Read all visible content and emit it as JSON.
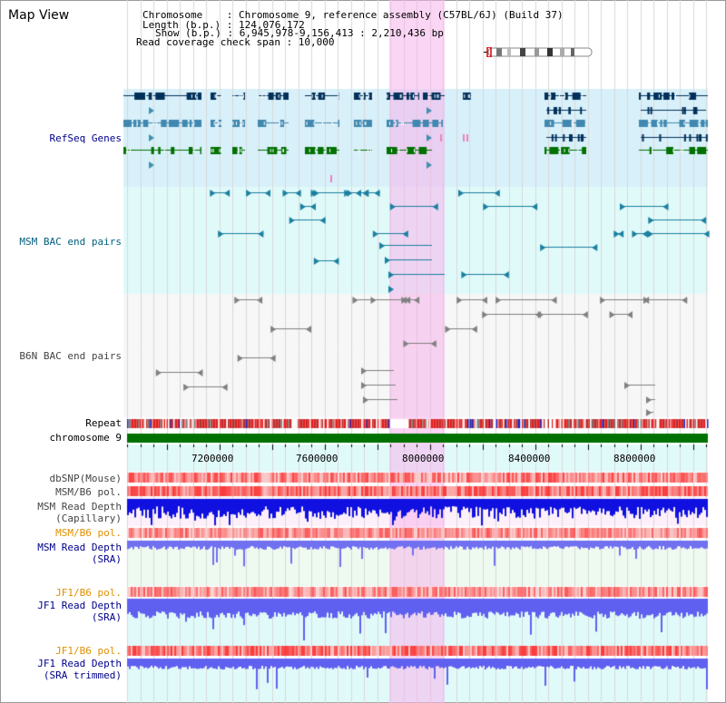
{
  "view_title": "Map View",
  "info": {
    "chromosome": "Chromosome    : Chromosome 9, reference assembly (C57BL/6J) (Build 37)",
    "length": "Length (b.p.) : 124,076,172",
    "show": "Show (b.p.) : 6,945,978-9,156,413 : 2,210,436 bp",
    "span": "Read coverage check span : 10,000"
  },
  "tracks": {
    "refseq": "RefSeq Genes",
    "msm_bac": "MSM BAC end pairs",
    "b6n_bac": "B6N BAC end pairs",
    "repeat": "Repeat",
    "chromosome": "chromosome 9",
    "dbsnp": "dbSNP(Mouse)",
    "msm_b6_pol": "MSM/B6 pol.",
    "msm_depth_cap": "MSM Read Depth\n(Capillary)",
    "msm_b6_pol2": "MSM/B6 pol.",
    "msm_depth_sra": "MSM Read Depth\n(SRA)",
    "jf1_b6_pol": "JF1/B6 pol.",
    "jf1_depth_sra": "JF1 Read Depth\n(SRA)",
    "jf1_b6_pol2": "JF1/B6 pol.",
    "jf1_depth_trim": "JF1 Read Depth\n(SRA trimmed)"
  },
  "axis": {
    "ticks": [
      "7200000",
      "7600000",
      "8000000",
      "8400000",
      "8800000"
    ]
  },
  "colors": {
    "highlight": "#f7c8ee",
    "refseq_bg": "#d8f0fa",
    "bac_bg": "#e0fafa",
    "label_blue": "#00008b",
    "label_teal": "#006080",
    "label_orange": "#e09000",
    "label_gray": "#444444",
    "gene_dark": "#00305a",
    "gene_mid": "#4088b0",
    "gene_green": "#007000",
    "chrom_green": "#007000"
  }
}
